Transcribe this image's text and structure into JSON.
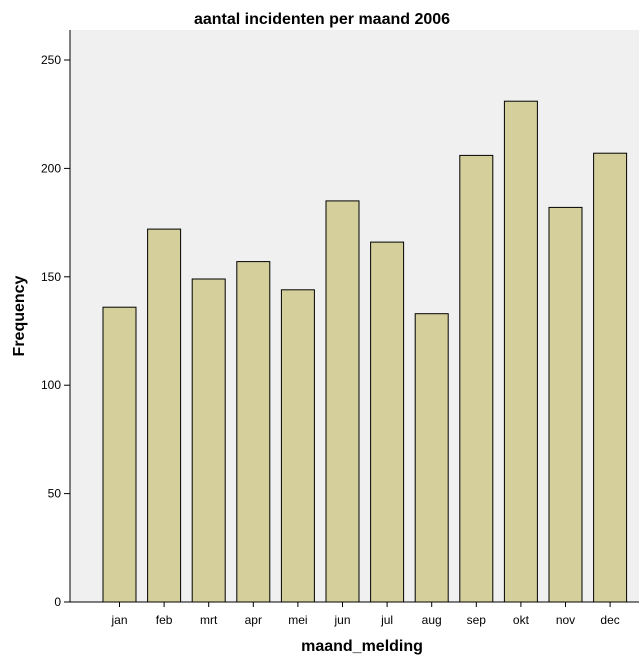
{
  "chart_data": {
    "type": "bar",
    "title": "aantal incidenten per maand 2006",
    "xlabel": "maand_melding",
    "ylabel": "Frequency",
    "categories": [
      "jan",
      "feb",
      "mrt",
      "apr",
      "mei",
      "jun",
      "jul",
      "aug",
      "sep",
      "okt",
      "nov",
      "dec"
    ],
    "values": [
      136,
      172,
      149,
      157,
      144,
      185,
      166,
      133,
      206,
      231,
      182,
      207
    ],
    "ylim": [
      0,
      265
    ],
    "yticks": [
      0,
      50,
      100,
      150,
      200,
      250
    ],
    "grid": false,
    "bar_color": "#d4cf9b",
    "background_color": "#f0f0f0"
  }
}
